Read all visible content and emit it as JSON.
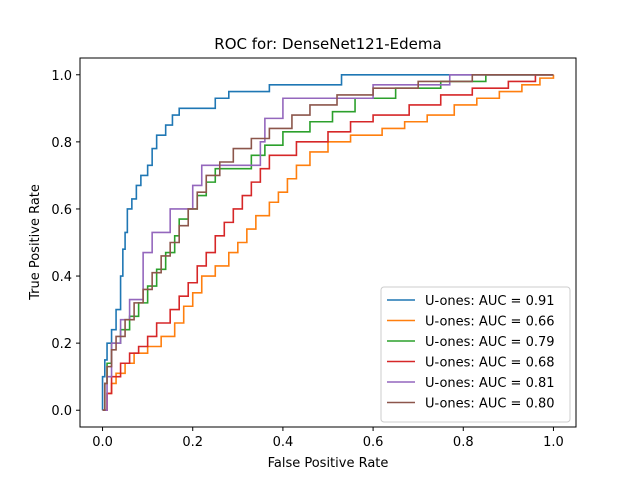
{
  "chart_data": {
    "type": "line",
    "title": "ROC for: DenseNet121-Edema",
    "xlabel": "False Positive Rate",
    "ylabel": "True Positive Rate",
    "xlim": [
      -0.05,
      1.05
    ],
    "ylim": [
      -0.05,
      1.05
    ],
    "xticks": [
      "0.0",
      "0.2",
      "0.4",
      "0.6",
      "0.8",
      "1.0"
    ],
    "yticks": [
      "0.0",
      "0.2",
      "0.4",
      "0.6",
      "0.8",
      "1.0"
    ],
    "grid": false,
    "legend_position": "lower-right",
    "series": [
      {
        "name": "U-ones: AUC = 0.91",
        "color": "#1f77b4",
        "points": [
          [
            0,
            0
          ],
          [
            0,
            0.1
          ],
          [
            0.005,
            0.1
          ],
          [
            0.005,
            0.15
          ],
          [
            0.01,
            0.15
          ],
          [
            0.01,
            0.2
          ],
          [
            0.02,
            0.2
          ],
          [
            0.02,
            0.24
          ],
          [
            0.03,
            0.24
          ],
          [
            0.03,
            0.3
          ],
          [
            0.04,
            0.3
          ],
          [
            0.04,
            0.4
          ],
          [
            0.045,
            0.4
          ],
          [
            0.045,
            0.48
          ],
          [
            0.05,
            0.48
          ],
          [
            0.05,
            0.53
          ],
          [
            0.055,
            0.53
          ],
          [
            0.055,
            0.6
          ],
          [
            0.065,
            0.6
          ],
          [
            0.065,
            0.63
          ],
          [
            0.075,
            0.63
          ],
          [
            0.075,
            0.67
          ],
          [
            0.085,
            0.67
          ],
          [
            0.085,
            0.7
          ],
          [
            0.1,
            0.7
          ],
          [
            0.1,
            0.73
          ],
          [
            0.11,
            0.73
          ],
          [
            0.11,
            0.78
          ],
          [
            0.12,
            0.78
          ],
          [
            0.12,
            0.82
          ],
          [
            0.14,
            0.82
          ],
          [
            0.14,
            0.85
          ],
          [
            0.155,
            0.85
          ],
          [
            0.155,
            0.88
          ],
          [
            0.17,
            0.88
          ],
          [
            0.17,
            0.9
          ],
          [
            0.25,
            0.9
          ],
          [
            0.25,
            0.93
          ],
          [
            0.28,
            0.93
          ],
          [
            0.28,
            0.95
          ],
          [
            0.37,
            0.95
          ],
          [
            0.37,
            0.97
          ],
          [
            0.53,
            0.97
          ],
          [
            0.53,
            1.0
          ],
          [
            1.0,
            1.0
          ]
        ]
      },
      {
        "name": "U-ones: AUC = 0.66",
        "color": "#ff7f0e",
        "points": [
          [
            0,
            0
          ],
          [
            0.01,
            0
          ],
          [
            0.01,
            0.05
          ],
          [
            0.02,
            0.05
          ],
          [
            0.02,
            0.08
          ],
          [
            0.03,
            0.08
          ],
          [
            0.03,
            0.11
          ],
          [
            0.05,
            0.11
          ],
          [
            0.05,
            0.14
          ],
          [
            0.07,
            0.14
          ],
          [
            0.07,
            0.17
          ],
          [
            0.1,
            0.17
          ],
          [
            0.1,
            0.19
          ],
          [
            0.13,
            0.19
          ],
          [
            0.13,
            0.22
          ],
          [
            0.16,
            0.22
          ],
          [
            0.16,
            0.26
          ],
          [
            0.18,
            0.26
          ],
          [
            0.18,
            0.31
          ],
          [
            0.2,
            0.31
          ],
          [
            0.2,
            0.35
          ],
          [
            0.22,
            0.35
          ],
          [
            0.22,
            0.4
          ],
          [
            0.25,
            0.4
          ],
          [
            0.25,
            0.43
          ],
          [
            0.28,
            0.43
          ],
          [
            0.28,
            0.47
          ],
          [
            0.3,
            0.47
          ],
          [
            0.3,
            0.5
          ],
          [
            0.32,
            0.5
          ],
          [
            0.32,
            0.54
          ],
          [
            0.34,
            0.54
          ],
          [
            0.34,
            0.58
          ],
          [
            0.37,
            0.58
          ],
          [
            0.37,
            0.62
          ],
          [
            0.39,
            0.62
          ],
          [
            0.39,
            0.65
          ],
          [
            0.41,
            0.65
          ],
          [
            0.41,
            0.69
          ],
          [
            0.43,
            0.69
          ],
          [
            0.43,
            0.73
          ],
          [
            0.46,
            0.73
          ],
          [
            0.46,
            0.77
          ],
          [
            0.5,
            0.77
          ],
          [
            0.5,
            0.8
          ],
          [
            0.55,
            0.8
          ],
          [
            0.55,
            0.82
          ],
          [
            0.62,
            0.82
          ],
          [
            0.62,
            0.84
          ],
          [
            0.67,
            0.84
          ],
          [
            0.67,
            0.86
          ],
          [
            0.72,
            0.86
          ],
          [
            0.72,
            0.88
          ],
          [
            0.78,
            0.88
          ],
          [
            0.78,
            0.91
          ],
          [
            0.83,
            0.91
          ],
          [
            0.83,
            0.93
          ],
          [
            0.88,
            0.93
          ],
          [
            0.88,
            0.95
          ],
          [
            0.93,
            0.95
          ],
          [
            0.93,
            0.97
          ],
          [
            0.97,
            0.97
          ],
          [
            0.97,
            0.99
          ],
          [
            1.0,
            0.99
          ],
          [
            1.0,
            1.0
          ]
        ]
      },
      {
        "name": "U-ones: AUC = 0.79",
        "color": "#2ca02c",
        "points": [
          [
            0,
            0
          ],
          [
            0.005,
            0
          ],
          [
            0.005,
            0.08
          ],
          [
            0.01,
            0.08
          ],
          [
            0.01,
            0.14
          ],
          [
            0.02,
            0.14
          ],
          [
            0.02,
            0.2
          ],
          [
            0.04,
            0.2
          ],
          [
            0.04,
            0.24
          ],
          [
            0.06,
            0.24
          ],
          [
            0.06,
            0.28
          ],
          [
            0.08,
            0.28
          ],
          [
            0.08,
            0.32
          ],
          [
            0.1,
            0.32
          ],
          [
            0.1,
            0.37
          ],
          [
            0.12,
            0.37
          ],
          [
            0.12,
            0.42
          ],
          [
            0.14,
            0.42
          ],
          [
            0.14,
            0.47
          ],
          [
            0.16,
            0.47
          ],
          [
            0.16,
            0.52
          ],
          [
            0.17,
            0.52
          ],
          [
            0.17,
            0.57
          ],
          [
            0.19,
            0.57
          ],
          [
            0.19,
            0.6
          ],
          [
            0.21,
            0.6
          ],
          [
            0.21,
            0.64
          ],
          [
            0.23,
            0.64
          ],
          [
            0.23,
            0.68
          ],
          [
            0.25,
            0.68
          ],
          [
            0.25,
            0.72
          ],
          [
            0.33,
            0.72
          ],
          [
            0.33,
            0.76
          ],
          [
            0.36,
            0.76
          ],
          [
            0.36,
            0.79
          ],
          [
            0.4,
            0.79
          ],
          [
            0.4,
            0.83
          ],
          [
            0.46,
            0.83
          ],
          [
            0.46,
            0.86
          ],
          [
            0.51,
            0.86
          ],
          [
            0.51,
            0.89
          ],
          [
            0.56,
            0.89
          ],
          [
            0.56,
            0.93
          ],
          [
            0.65,
            0.93
          ],
          [
            0.65,
            0.96
          ],
          [
            0.75,
            0.96
          ],
          [
            0.75,
            0.98
          ],
          [
            0.85,
            0.98
          ],
          [
            0.85,
            1.0
          ],
          [
            1.0,
            1.0
          ]
        ]
      },
      {
        "name": "U-ones: AUC = 0.68",
        "color": "#d62728",
        "points": [
          [
            0,
            0
          ],
          [
            0.01,
            0
          ],
          [
            0.01,
            0.05
          ],
          [
            0.02,
            0.05
          ],
          [
            0.02,
            0.1
          ],
          [
            0.04,
            0.1
          ],
          [
            0.04,
            0.14
          ],
          [
            0.06,
            0.14
          ],
          [
            0.06,
            0.17
          ],
          [
            0.08,
            0.17
          ],
          [
            0.08,
            0.19
          ],
          [
            0.1,
            0.19
          ],
          [
            0.1,
            0.22
          ],
          [
            0.12,
            0.22
          ],
          [
            0.12,
            0.26
          ],
          [
            0.15,
            0.26
          ],
          [
            0.15,
            0.3
          ],
          [
            0.17,
            0.3
          ],
          [
            0.17,
            0.34
          ],
          [
            0.19,
            0.34
          ],
          [
            0.19,
            0.38
          ],
          [
            0.21,
            0.38
          ],
          [
            0.21,
            0.43
          ],
          [
            0.23,
            0.43
          ],
          [
            0.23,
            0.47
          ],
          [
            0.25,
            0.47
          ],
          [
            0.25,
            0.52
          ],
          [
            0.27,
            0.52
          ],
          [
            0.27,
            0.56
          ],
          [
            0.29,
            0.56
          ],
          [
            0.29,
            0.6
          ],
          [
            0.31,
            0.6
          ],
          [
            0.31,
            0.64
          ],
          [
            0.33,
            0.64
          ],
          [
            0.33,
            0.68
          ],
          [
            0.35,
            0.68
          ],
          [
            0.35,
            0.72
          ],
          [
            0.37,
            0.72
          ],
          [
            0.37,
            0.76
          ],
          [
            0.43,
            0.76
          ],
          [
            0.43,
            0.8
          ],
          [
            0.5,
            0.8
          ],
          [
            0.5,
            0.83
          ],
          [
            0.55,
            0.83
          ],
          [
            0.55,
            0.86
          ],
          [
            0.6,
            0.86
          ],
          [
            0.6,
            0.88
          ],
          [
            0.68,
            0.88
          ],
          [
            0.68,
            0.91
          ],
          [
            0.75,
            0.91
          ],
          [
            0.75,
            0.94
          ],
          [
            0.82,
            0.94
          ],
          [
            0.82,
            0.96
          ],
          [
            0.9,
            0.96
          ],
          [
            0.9,
            0.98
          ],
          [
            0.96,
            0.98
          ],
          [
            0.96,
            1.0
          ],
          [
            1.0,
            1.0
          ]
        ]
      },
      {
        "name": "U-ones: AUC = 0.81",
        "color": "#9467bd",
        "points": [
          [
            0,
            0
          ],
          [
            0.01,
            0
          ],
          [
            0.01,
            0.1
          ],
          [
            0.02,
            0.1
          ],
          [
            0.02,
            0.2
          ],
          [
            0.04,
            0.2
          ],
          [
            0.04,
            0.27
          ],
          [
            0.06,
            0.27
          ],
          [
            0.06,
            0.33
          ],
          [
            0.09,
            0.33
          ],
          [
            0.09,
            0.47
          ],
          [
            0.11,
            0.47
          ],
          [
            0.11,
            0.53
          ],
          [
            0.15,
            0.53
          ],
          [
            0.15,
            0.6
          ],
          [
            0.2,
            0.6
          ],
          [
            0.2,
            0.67
          ],
          [
            0.22,
            0.67
          ],
          [
            0.22,
            0.73
          ],
          [
            0.35,
            0.73
          ],
          [
            0.35,
            0.8
          ],
          [
            0.36,
            0.8
          ],
          [
            0.36,
            0.87
          ],
          [
            0.4,
            0.87
          ],
          [
            0.4,
            0.93
          ],
          [
            0.6,
            0.93
          ],
          [
            0.6,
            0.97
          ],
          [
            0.77,
            0.97
          ],
          [
            0.77,
            1.0
          ],
          [
            1.0,
            1.0
          ]
        ]
      },
      {
        "name": "U-ones: AUC = 0.80",
        "color": "#8c564b",
        "points": [
          [
            0,
            0
          ],
          [
            0.005,
            0
          ],
          [
            0.005,
            0.08
          ],
          [
            0.01,
            0.08
          ],
          [
            0.01,
            0.13
          ],
          [
            0.02,
            0.13
          ],
          [
            0.02,
            0.18
          ],
          [
            0.03,
            0.18
          ],
          [
            0.03,
            0.22
          ],
          [
            0.05,
            0.22
          ],
          [
            0.05,
            0.27
          ],
          [
            0.07,
            0.27
          ],
          [
            0.07,
            0.32
          ],
          [
            0.09,
            0.32
          ],
          [
            0.09,
            0.36
          ],
          [
            0.11,
            0.36
          ],
          [
            0.11,
            0.41
          ],
          [
            0.13,
            0.41
          ],
          [
            0.13,
            0.46
          ],
          [
            0.15,
            0.46
          ],
          [
            0.15,
            0.5
          ],
          [
            0.17,
            0.5
          ],
          [
            0.17,
            0.55
          ],
          [
            0.19,
            0.55
          ],
          [
            0.19,
            0.6
          ],
          [
            0.21,
            0.6
          ],
          [
            0.21,
            0.65
          ],
          [
            0.23,
            0.65
          ],
          [
            0.23,
            0.7
          ],
          [
            0.26,
            0.7
          ],
          [
            0.26,
            0.74
          ],
          [
            0.29,
            0.74
          ],
          [
            0.29,
            0.78
          ],
          [
            0.33,
            0.78
          ],
          [
            0.33,
            0.81
          ],
          [
            0.37,
            0.81
          ],
          [
            0.37,
            0.84
          ],
          [
            0.42,
            0.84
          ],
          [
            0.42,
            0.88
          ],
          [
            0.46,
            0.88
          ],
          [
            0.46,
            0.91
          ],
          [
            0.52,
            0.91
          ],
          [
            0.52,
            0.94
          ],
          [
            0.6,
            0.94
          ],
          [
            0.6,
            0.96
          ],
          [
            0.7,
            0.96
          ],
          [
            0.7,
            0.98
          ],
          [
            0.82,
            0.98
          ],
          [
            0.82,
            1.0
          ],
          [
            1.0,
            1.0
          ]
        ]
      }
    ]
  }
}
